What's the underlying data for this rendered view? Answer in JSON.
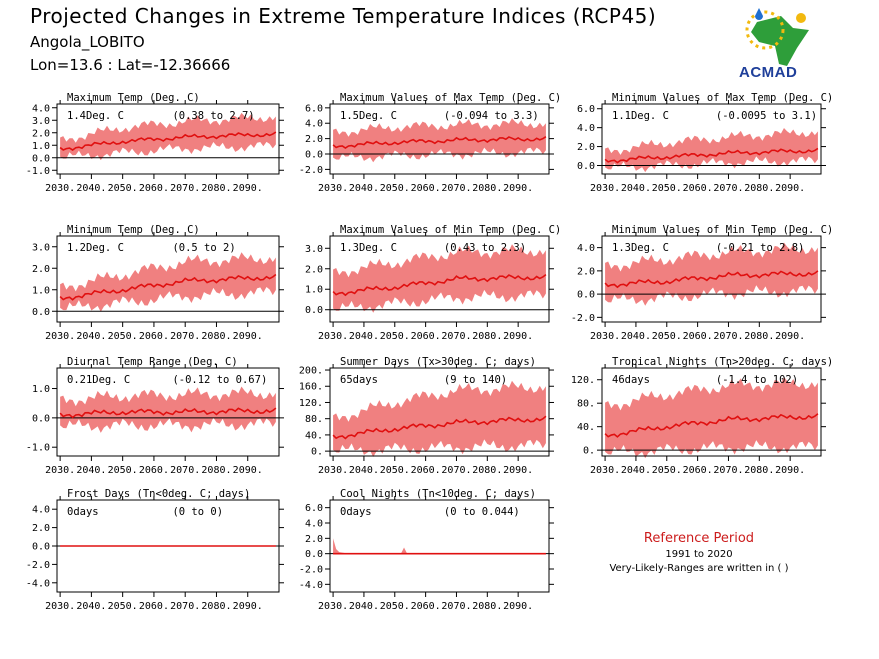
{
  "header": {
    "title": "Projected Changes in Extreme Temperature Indices (RCP45)",
    "location": "Angola_LOBITO",
    "coords": "Lon=13.6 : Lat=-12.36666"
  },
  "logo": {
    "text": "ACMAD"
  },
  "reference": {
    "title": "Reference Period",
    "years": "1991 to 2020",
    "note": "Very-Likely-Ranges are written in ( )"
  },
  "colors": {
    "band": "#f08080",
    "line": "#e01010",
    "zero": "#000000"
  },
  "chart_data": [
    {
      "type": "area",
      "title": "Maximum Temp (Deg. C)",
      "summary": "1.4Deg. C",
      "range": "(0.38 to 2.7)",
      "x_ticks": [
        "2030.",
        "2040.",
        "2050.",
        "2060.",
        "2070.",
        "2080.",
        "2090."
      ],
      "y_ticks": [
        "4.0",
        "3.0",
        "2.0",
        "1.0",
        "0.0",
        "-1.0"
      ],
      "ylim": [
        -1.3,
        4.3
      ],
      "xlim": [
        2029,
        2100
      ],
      "x": [
        2030,
        2050,
        2070,
        2099
      ],
      "median": [
        0.7,
        1.3,
        1.65,
        1.9
      ],
      "low": [
        0.0,
        0.4,
        0.75,
        0.95
      ],
      "high": [
        1.4,
        2.4,
        2.9,
        3.3
      ]
    },
    {
      "type": "area",
      "title": "Maximum Values of Max Temp (Deg. C)",
      "summary": "1.5Deg. C",
      "range": "(-0.094 to 3.3)",
      "x_ticks": [
        "2030.",
        "2040.",
        "2050.",
        "2060.",
        "2070.",
        "2080.",
        "2090."
      ],
      "y_ticks": [
        "6.0",
        "4.0",
        "2.0",
        "0.0",
        "-2.0"
      ],
      "ylim": [
        -2.6,
        6.5
      ],
      "xlim": [
        2029,
        2100
      ],
      "x": [
        2030,
        2050,
        2070,
        2099
      ],
      "median": [
        1.0,
        1.5,
        1.8,
        2.0
      ],
      "low": [
        -0.6,
        -0.2,
        0.0,
        0.3
      ],
      "high": [
        2.8,
        3.5,
        3.8,
        4.0
      ]
    },
    {
      "type": "area",
      "title": "Minimum Values of Max Temp (Deg. C)",
      "summary": "1.1Deg. C",
      "range": "(-0.0095 to 3.1)",
      "x_ticks": [
        "2030.",
        "2040.",
        "2050.",
        "2060.",
        "2070.",
        "2080.",
        "2090."
      ],
      "y_ticks": [
        "6.0",
        "4.0",
        "2.0",
        "0.0"
      ],
      "ylim": [
        -0.9,
        6.5
      ],
      "xlim": [
        2029,
        2100
      ],
      "x": [
        2030,
        2050,
        2070,
        2099
      ],
      "median": [
        0.5,
        0.9,
        1.3,
        1.6
      ],
      "low": [
        -0.3,
        0.0,
        0.3,
        0.5
      ],
      "high": [
        1.5,
        2.4,
        3.0,
        3.6
      ]
    },
    {
      "type": "area",
      "title": "Minimum Temp (Deg. C)",
      "summary": "1.2Deg. C",
      "range": "(0.5 to 2)",
      "x_ticks": [
        "2030.",
        "2040.",
        "2050.",
        "2060.",
        "2070.",
        "2080.",
        "2090."
      ],
      "y_ticks": [
        "3.0",
        "2.0",
        "1.0",
        "0.0"
      ],
      "ylim": [
        -0.5,
        3.5
      ],
      "xlim": [
        2029,
        2100
      ],
      "x": [
        2030,
        2050,
        2070,
        2099
      ],
      "median": [
        0.6,
        1.0,
        1.4,
        1.6
      ],
      "low": [
        0.1,
        0.4,
        0.7,
        0.9
      ],
      "high": [
        1.1,
        1.7,
        2.3,
        2.5
      ]
    },
    {
      "type": "area",
      "title": "Maximum Values of Min Temp (Deg. C)",
      "summary": "1.3Deg. C",
      "range": "(0.43 to 2.3)",
      "x_ticks": [
        "2030.",
        "2040.",
        "2050.",
        "2060.",
        "2070.",
        "2080.",
        "2090."
      ],
      "y_ticks": [
        "3.0",
        "2.0",
        "1.0",
        "0.0"
      ],
      "ylim": [
        -0.6,
        3.6
      ],
      "xlim": [
        2029,
        2100
      ],
      "x": [
        2030,
        2050,
        2070,
        2099
      ],
      "median": [
        0.8,
        1.1,
        1.5,
        1.6
      ],
      "low": [
        0.0,
        0.3,
        0.6,
        0.7
      ],
      "high": [
        1.8,
        2.3,
        2.8,
        2.9
      ]
    },
    {
      "type": "area",
      "title": "Minimum Values of Min Temp (Deg. C)",
      "summary": "1.3Deg. C",
      "range": "(-0.21 to 2.8)",
      "x_ticks": [
        "2030.",
        "2040.",
        "2050.",
        "2060.",
        "2070.",
        "2080.",
        "2090."
      ],
      "y_ticks": [
        "4.0",
        "2.0",
        "0.0",
        "-2.0"
      ],
      "ylim": [
        -2.4,
        5.0
      ],
      "xlim": [
        2029,
        2100
      ],
      "x": [
        2030,
        2050,
        2070,
        2099
      ],
      "median": [
        0.8,
        1.1,
        1.6,
        1.8
      ],
      "low": [
        -0.6,
        -0.3,
        0.1,
        0.3
      ],
      "high": [
        2.4,
        3.0,
        3.6,
        4.0
      ]
    },
    {
      "type": "area",
      "title": "Diurnal Temp Range (Deg. C)",
      "summary": "0.21Deg. C",
      "range": "(-0.12 to 0.67)",
      "x_ticks": [
        "2030.",
        "2040.",
        "2050.",
        "2060.",
        "2070.",
        "2080.",
        "2090."
      ],
      "y_ticks": [
        "1.0",
        "0.0",
        "-1.0"
      ],
      "ylim": [
        -1.3,
        1.7
      ],
      "xlim": [
        2029,
        2100
      ],
      "x": [
        2030,
        2050,
        2070,
        2099
      ],
      "median": [
        0.1,
        0.2,
        0.2,
        0.25
      ],
      "low": [
        -0.3,
        -0.25,
        -0.25,
        -0.2
      ],
      "high": [
        0.6,
        0.75,
        0.8,
        0.85
      ]
    },
    {
      "type": "area",
      "title": "Summer Days (Tx>30deg. C; days)",
      "summary": "65days",
      "range": "(9 to 140)",
      "x_ticks": [
        "2030.",
        "2040.",
        "2050.",
        "2060.",
        "2070.",
        "2080.",
        "2090."
      ],
      "y_ticks": [
        "200.",
        "160.",
        "120.",
        "80.",
        "40.",
        "0."
      ],
      "ylim": [
        -12,
        205
      ],
      "xlim": [
        2029,
        2100
      ],
      "x": [
        2030,
        2050,
        2070,
        2099
      ],
      "median": [
        35,
        55,
        70,
        80
      ],
      "low": [
        0,
        5,
        10,
        15
      ],
      "high": [
        80,
        120,
        150,
        160
      ]
    },
    {
      "type": "area",
      "title": "Tropical Nights (Tn>20deg. C; days)",
      "summary": "46days",
      "range": "(-1.4 to 102)",
      "x_ticks": [
        "2030.",
        "2040.",
        "2050.",
        "2060.",
        "2070.",
        "2080.",
        "2090."
      ],
      "y_ticks": [
        "120.",
        "80.",
        "40.",
        "0."
      ],
      "ylim": [
        -10,
        140
      ],
      "xlim": [
        2029,
        2100
      ],
      "x": [
        2030,
        2050,
        2070,
        2099
      ],
      "median": [
        25,
        40,
        52,
        58
      ],
      "low": [
        -5,
        0,
        5,
        5
      ],
      "high": [
        75,
        95,
        110,
        115
      ]
    },
    {
      "type": "area",
      "title": "Frost Days (Tn<0deg. C; days)",
      "summary": "0days",
      "range": "(0 to 0)",
      "x_ticks": [
        "2030.",
        "2040.",
        "2050.",
        "2060.",
        "2070.",
        "2080.",
        "2090."
      ],
      "y_ticks": [
        "4.0",
        "2.0",
        "0.0",
        "-2.0",
        "-4.0"
      ],
      "ylim": [
        -5,
        5
      ],
      "xlim": [
        2029,
        2100
      ],
      "x": [
        2030,
        2099
      ],
      "median": [
        0,
        0
      ],
      "low": [
        0,
        0
      ],
      "high": [
        0.05,
        0.05
      ]
    },
    {
      "type": "area",
      "title": "Cool Nights (Tn<10deg. C; days)",
      "summary": "0days",
      "range": "(0 to 0.044)",
      "x_ticks": [
        "2030.",
        "2040.",
        "2050.",
        "2060.",
        "2070.",
        "2080.",
        "2090."
      ],
      "y_ticks": [
        "6.0",
        "4.0",
        "2.0",
        "0.0",
        "-2.0",
        "-4.0"
      ],
      "ylim": [
        -5,
        7
      ],
      "xlim": [
        2029,
        2100
      ],
      "x": [
        2030,
        2031,
        2032,
        2035,
        2052,
        2053,
        2054,
        2099
      ],
      "median": [
        0,
        0,
        0,
        0,
        0,
        0,
        0,
        0
      ],
      "low": [
        0,
        0,
        0,
        0,
        0,
        0,
        0,
        0
      ],
      "high": [
        2.0,
        0.6,
        0.2,
        0,
        0,
        0.8,
        0,
        0
      ]
    }
  ]
}
